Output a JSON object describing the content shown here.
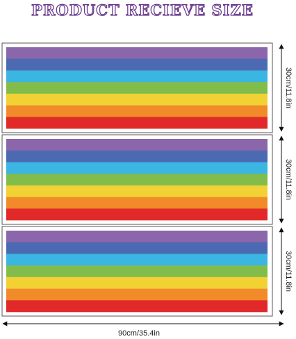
{
  "title": "PRODUCT RECIEVE SIZE",
  "dimensions": {
    "heights": [
      "30cm/11.8in",
      "30cm/11.8in",
      "30cm/11.8in"
    ],
    "width": "90cm/35.4in"
  }
}
